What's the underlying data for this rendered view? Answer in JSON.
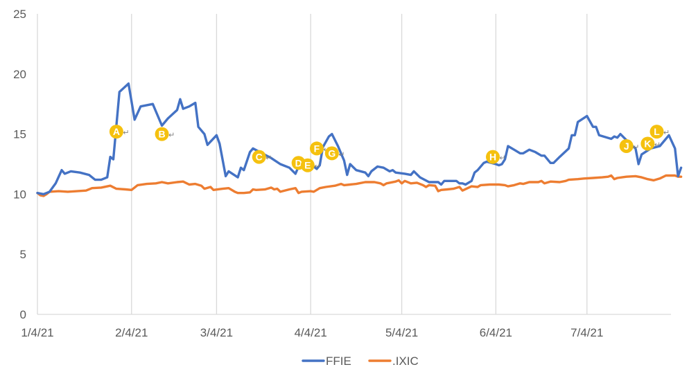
{
  "chart_data": {
    "type": "line",
    "title": "",
    "xlabel": "",
    "ylabel": "",
    "ylim": [
      0,
      25
    ],
    "yticks": [
      0,
      5,
      10,
      15,
      20,
      25
    ],
    "x_range": [
      "2021-01-04",
      "2021-07-27"
    ],
    "xticks": [
      {
        "date": "2021-01-04",
        "label": "1/4/21"
      },
      {
        "date": "2021-02-04",
        "label": "2/4/21"
      },
      {
        "date": "2021-03-04",
        "label": "3/4/21"
      },
      {
        "date": "2021-04-04",
        "label": "4/4/21"
      },
      {
        "date": "2021-05-04",
        "label": "5/4/21"
      },
      {
        "date": "2021-06-04",
        "label": "6/4/21"
      },
      {
        "date": "2021-07-04",
        "label": "7/4/21"
      }
    ],
    "grid": {
      "vertical": true,
      "horizontal": false
    },
    "legend": {
      "position": "bottom"
    },
    "series": [
      {
        "name": "FFIE",
        "color": "#4472C4",
        "points": [
          [
            "2021-01-04",
            10.1
          ],
          [
            "2021-01-06",
            10.0
          ],
          [
            "2021-01-08",
            10.2
          ],
          [
            "2021-01-10",
            10.9
          ],
          [
            "2021-01-12",
            12.0
          ],
          [
            "2021-01-13",
            11.7
          ],
          [
            "2021-01-15",
            11.9
          ],
          [
            "2021-01-18",
            11.8
          ],
          [
            "2021-01-21",
            11.6
          ],
          [
            "2021-01-23",
            11.2
          ],
          [
            "2021-01-25",
            11.2
          ],
          [
            "2021-01-27",
            11.4
          ],
          [
            "2021-01-28",
            13.1
          ],
          [
            "2021-01-29",
            12.9
          ],
          [
            "2021-01-31",
            18.5
          ],
          [
            "2021-02-03",
            19.2
          ],
          [
            "2021-02-05",
            16.2
          ],
          [
            "2021-02-07",
            17.3
          ],
          [
            "2021-02-09",
            17.4
          ],
          [
            "2021-02-11",
            17.5
          ],
          [
            "2021-02-12",
            16.9
          ],
          [
            "2021-02-14",
            15.7
          ],
          [
            "2021-02-16",
            16.3
          ],
          [
            "2021-02-19",
            17.0
          ],
          [
            "2021-02-20",
            17.9
          ],
          [
            "2021-02-21",
            17.1
          ],
          [
            "2021-02-23",
            17.3
          ],
          [
            "2021-02-25",
            17.6
          ],
          [
            "2021-02-26",
            15.6
          ],
          [
            "2021-02-28",
            15.0
          ],
          [
            "2021-03-01",
            14.1
          ],
          [
            "2021-03-04",
            14.9
          ],
          [
            "2021-03-05",
            14.2
          ],
          [
            "2021-03-07",
            11.5
          ],
          [
            "2021-03-08",
            11.9
          ],
          [
            "2021-03-11",
            11.4
          ],
          [
            "2021-03-12",
            12.2
          ],
          [
            "2021-03-13",
            12.0
          ],
          [
            "2021-03-15",
            13.5
          ],
          [
            "2021-03-16",
            13.8
          ],
          [
            "2021-03-19",
            13.4
          ],
          [
            "2021-03-22",
            13.0
          ],
          [
            "2021-03-25",
            12.5
          ],
          [
            "2021-03-28",
            12.2
          ],
          [
            "2021-03-30",
            11.7
          ],
          [
            "2021-03-31",
            12.3
          ],
          [
            "2021-04-02",
            12.2
          ],
          [
            "2021-04-04",
            12.0
          ],
          [
            "2021-04-05",
            12.3
          ],
          [
            "2021-04-06",
            12.1
          ],
          [
            "2021-04-07",
            12.4
          ],
          [
            "2021-04-08",
            13.9
          ],
          [
            "2021-04-10",
            14.8
          ],
          [
            "2021-04-11",
            15.0
          ],
          [
            "2021-04-13",
            14.0
          ],
          [
            "2021-04-15",
            12.8
          ],
          [
            "2021-04-16",
            11.6
          ],
          [
            "2021-04-17",
            12.5
          ],
          [
            "2021-04-19",
            12.0
          ],
          [
            "2021-04-22",
            11.8
          ],
          [
            "2021-04-23",
            11.5
          ],
          [
            "2021-04-24",
            11.9
          ],
          [
            "2021-04-26",
            12.3
          ],
          [
            "2021-04-28",
            12.2
          ],
          [
            "2021-04-30",
            11.9
          ],
          [
            "2021-05-01",
            12.0
          ],
          [
            "2021-05-02",
            11.8
          ],
          [
            "2021-05-05",
            11.7
          ],
          [
            "2021-05-07",
            11.6
          ],
          [
            "2021-05-08",
            11.9
          ],
          [
            "2021-05-10",
            11.4
          ],
          [
            "2021-05-13",
            11.0
          ],
          [
            "2021-05-16",
            11.0
          ],
          [
            "2021-05-17",
            10.8
          ],
          [
            "2021-05-18",
            11.1
          ],
          [
            "2021-05-22",
            11.1
          ],
          [
            "2021-05-23",
            10.9
          ],
          [
            "2021-05-24",
            10.9
          ],
          [
            "2021-05-25",
            10.8
          ],
          [
            "2021-05-27",
            11.1
          ],
          [
            "2021-05-28",
            11.8
          ],
          [
            "2021-05-29",
            12.0
          ],
          [
            "2021-05-31",
            12.6
          ],
          [
            "2021-06-01",
            12.7
          ],
          [
            "2021-06-04",
            12.5
          ],
          [
            "2021-06-05",
            12.4
          ],
          [
            "2021-06-06",
            12.5
          ],
          [
            "2021-06-07",
            12.9
          ],
          [
            "2021-06-08",
            14.0
          ],
          [
            "2021-06-10",
            13.7
          ],
          [
            "2021-06-12",
            13.4
          ],
          [
            "2021-06-13",
            13.4
          ],
          [
            "2021-06-15",
            13.7
          ],
          [
            "2021-06-17",
            13.5
          ],
          [
            "2021-06-19",
            13.2
          ],
          [
            "2021-06-20",
            13.2
          ],
          [
            "2021-06-22",
            12.6
          ],
          [
            "2021-06-23",
            12.6
          ],
          [
            "2021-06-25",
            13.1
          ],
          [
            "2021-06-28",
            13.8
          ],
          [
            "2021-06-29",
            14.9
          ],
          [
            "2021-06-30",
            14.9
          ],
          [
            "2021-07-01",
            16.0
          ],
          [
            "2021-07-04",
            16.5
          ],
          [
            "2021-07-06",
            15.6
          ],
          [
            "2021-07-07",
            15.6
          ],
          [
            "2021-07-08",
            14.9
          ],
          [
            "2021-07-12",
            14.6
          ],
          [
            "2021-07-13",
            14.8
          ],
          [
            "2021-07-14",
            14.7
          ],
          [
            "2021-07-15",
            15.0
          ],
          [
            "2021-07-17",
            14.5
          ],
          [
            "2021-07-19",
            14.0
          ],
          [
            "2021-07-20",
            13.8
          ],
          [
            "2021-07-21",
            12.5
          ],
          [
            "2021-07-22",
            13.3
          ],
          [
            "2021-07-25",
            13.8
          ],
          [
            "2021-07-28",
            14.0
          ],
          [
            "2021-07-30",
            14.6
          ],
          [
            "2021-07-31",
            14.9
          ],
          [
            "2021-08-02",
            13.8
          ],
          [
            "2021-08-03",
            11.5
          ],
          [
            "2021-08-04",
            12.2
          ]
        ]
      },
      {
        "name": ".IXIC",
        "color": "#ED7D31",
        "points": [
          [
            "2021-01-04",
            10.1
          ],
          [
            "2021-01-05",
            9.9
          ],
          [
            "2021-01-06",
            9.85
          ],
          [
            "2021-01-07",
            10.0
          ],
          [
            "2021-01-08",
            10.2
          ],
          [
            "2021-01-11",
            10.25
          ],
          [
            "2021-01-14",
            10.2
          ],
          [
            "2021-01-17",
            10.25
          ],
          [
            "2021-01-20",
            10.3
          ],
          [
            "2021-01-22",
            10.5
          ],
          [
            "2021-01-25",
            10.55
          ],
          [
            "2021-01-28",
            10.7
          ],
          [
            "2021-01-30",
            10.45
          ],
          [
            "2021-02-02",
            10.4
          ],
          [
            "2021-02-04",
            10.35
          ],
          [
            "2021-02-06",
            10.75
          ],
          [
            "2021-02-09",
            10.85
          ],
          [
            "2021-02-12",
            10.9
          ],
          [
            "2021-02-14",
            11.0
          ],
          [
            "2021-02-16",
            10.9
          ],
          [
            "2021-02-19",
            11.0
          ],
          [
            "2021-02-21",
            11.05
          ],
          [
            "2021-02-23",
            10.8
          ],
          [
            "2021-02-25",
            10.85
          ],
          [
            "2021-02-27",
            10.7
          ],
          [
            "2021-02-28",
            10.45
          ],
          [
            "2021-03-02",
            10.6
          ],
          [
            "2021-03-03",
            10.35
          ],
          [
            "2021-03-06",
            10.45
          ],
          [
            "2021-03-08",
            10.5
          ],
          [
            "2021-03-10",
            10.2
          ],
          [
            "2021-03-11",
            10.1
          ],
          [
            "2021-03-13",
            10.1
          ],
          [
            "2021-03-15",
            10.15
          ],
          [
            "2021-03-16",
            10.4
          ],
          [
            "2021-03-17",
            10.35
          ],
          [
            "2021-03-20",
            10.4
          ],
          [
            "2021-03-22",
            10.55
          ],
          [
            "2021-03-23",
            10.4
          ],
          [
            "2021-03-24",
            10.45
          ],
          [
            "2021-03-25",
            10.2
          ],
          [
            "2021-03-28",
            10.4
          ],
          [
            "2021-03-30",
            10.5
          ],
          [
            "2021-03-31",
            10.1
          ],
          [
            "2021-04-01",
            10.2
          ],
          [
            "2021-04-04",
            10.25
          ],
          [
            "2021-04-05",
            10.2
          ],
          [
            "2021-04-07",
            10.5
          ],
          [
            "2021-04-09",
            10.6
          ],
          [
            "2021-04-12",
            10.7
          ],
          [
            "2021-04-14",
            10.85
          ],
          [
            "2021-04-15",
            10.75
          ],
          [
            "2021-04-17",
            10.8
          ],
          [
            "2021-04-19",
            10.85
          ],
          [
            "2021-04-22",
            11.0
          ],
          [
            "2021-04-25",
            11.0
          ],
          [
            "2021-04-27",
            10.9
          ],
          [
            "2021-04-28",
            10.75
          ],
          [
            "2021-04-29",
            10.9
          ],
          [
            "2021-05-02",
            11.05
          ],
          [
            "2021-05-03",
            11.15
          ],
          [
            "2021-05-04",
            10.9
          ],
          [
            "2021-05-05",
            11.1
          ],
          [
            "2021-05-07",
            10.9
          ],
          [
            "2021-05-09",
            10.95
          ],
          [
            "2021-05-11",
            10.75
          ],
          [
            "2021-05-12",
            10.6
          ],
          [
            "2021-05-13",
            10.75
          ],
          [
            "2021-05-15",
            10.7
          ],
          [
            "2021-05-16",
            10.25
          ],
          [
            "2021-05-17",
            10.35
          ],
          [
            "2021-05-19",
            10.4
          ],
          [
            "2021-05-21",
            10.45
          ],
          [
            "2021-05-23",
            10.6
          ],
          [
            "2021-05-24",
            10.3
          ],
          [
            "2021-05-27",
            10.65
          ],
          [
            "2021-05-29",
            10.6
          ],
          [
            "2021-05-30",
            10.75
          ],
          [
            "2021-06-02",
            10.8
          ],
          [
            "2021-06-05",
            10.8
          ],
          [
            "2021-06-07",
            10.75
          ],
          [
            "2021-06-08",
            10.65
          ],
          [
            "2021-06-10",
            10.75
          ],
          [
            "2021-06-12",
            10.9
          ],
          [
            "2021-06-13",
            10.85
          ],
          [
            "2021-06-15",
            11.0
          ],
          [
            "2021-06-18",
            11.0
          ],
          [
            "2021-06-19",
            11.1
          ],
          [
            "2021-06-20",
            10.9
          ],
          [
            "2021-06-22",
            11.05
          ],
          [
            "2021-06-25",
            11.0
          ],
          [
            "2021-06-27",
            11.1
          ],
          [
            "2021-06-28",
            11.2
          ],
          [
            "2021-07-01",
            11.25
          ],
          [
            "2021-07-03",
            11.3
          ],
          [
            "2021-07-06",
            11.35
          ],
          [
            "2021-07-09",
            11.4
          ],
          [
            "2021-07-11",
            11.45
          ],
          [
            "2021-07-12",
            11.55
          ],
          [
            "2021-07-13",
            11.25
          ],
          [
            "2021-07-14",
            11.35
          ],
          [
            "2021-07-17",
            11.45
          ],
          [
            "2021-07-20",
            11.5
          ],
          [
            "2021-07-22",
            11.4
          ],
          [
            "2021-07-24",
            11.25
          ],
          [
            "2021-07-26",
            11.15
          ],
          [
            "2021-07-28",
            11.3
          ],
          [
            "2021-07-30",
            11.55
          ],
          [
            "2021-08-01",
            11.55
          ],
          [
            "2021-08-02",
            11.55
          ],
          [
            "2021-08-03",
            11.45
          ],
          [
            "2021-08-04",
            11.45
          ]
        ]
      }
    ],
    "annotations": [
      {
        "label": "A",
        "date": "2021-01-30",
        "y": 15.2
      },
      {
        "label": "B",
        "date": "2021-02-14",
        "y": 15.0
      },
      {
        "label": "C",
        "date": "2021-03-18",
        "y": 13.1
      },
      {
        "label": "D",
        "date": "2021-03-31",
        "y": 12.6
      },
      {
        "label": "E",
        "date": "2021-04-03",
        "y": 12.4
      },
      {
        "label": "F",
        "date": "2021-04-06",
        "y": 13.8
      },
      {
        "label": "G",
        "date": "2021-04-11",
        "y": 13.4
      },
      {
        "label": "H",
        "date": "2021-06-03",
        "y": 13.1
      },
      {
        "label": "J",
        "date": "2021-07-17",
        "y": 14.0
      },
      {
        "label": "K",
        "date": "2021-07-24",
        "y": 14.2
      },
      {
        "label": "L",
        "date": "2021-07-27",
        "y": 15.2
      }
    ],
    "annotation_color": "#F5C10F"
  }
}
